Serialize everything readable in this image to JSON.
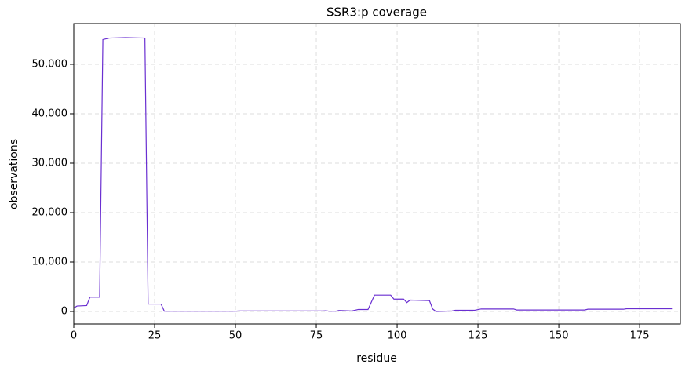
{
  "chart_data": {
    "type": "line",
    "title": "SSR3:p coverage",
    "xlabel": "residue",
    "ylabel": "observations",
    "x": [
      0,
      1,
      4,
      5,
      8,
      9,
      11,
      16,
      22,
      23,
      27,
      28,
      50,
      51,
      77,
      78,
      79,
      81,
      82,
      86,
      88,
      91,
      93,
      98,
      99,
      102,
      103,
      104,
      110,
      111,
      112,
      117,
      118,
      124,
      126,
      136,
      137,
      158,
      159,
      170,
      171,
      185
    ],
    "series": [
      {
        "name": "coverage",
        "color": "#6a2fd1",
        "values": [
          700,
          1100,
          1200,
          2900,
          2900,
          55000,
          55300,
          55400,
          55300,
          1500,
          1500,
          50,
          50,
          100,
          100,
          150,
          50,
          50,
          200,
          100,
          400,
          400,
          3300,
          3300,
          2500,
          2500,
          1800,
          2300,
          2200,
          500,
          0,
          100,
          250,
          250,
          500,
          500,
          300,
          300,
          450,
          450,
          550,
          550
        ]
      }
    ],
    "xlim": [
      0,
      187.6
    ],
    "ylim": [
      -2540,
      58250
    ],
    "xticks": [
      0,
      25,
      50,
      75,
      100,
      125,
      150,
      175
    ],
    "yticks": [
      0,
      {
        "value": 10000,
        "label": "10,000"
      },
      {
        "value": 20000,
        "label": "20,000"
      },
      {
        "value": 30000,
        "label": "30,000"
      },
      {
        "value": 40000,
        "label": "40,000"
      },
      {
        "value": 50000,
        "label": "50,000"
      }
    ],
    "grid": true
  }
}
